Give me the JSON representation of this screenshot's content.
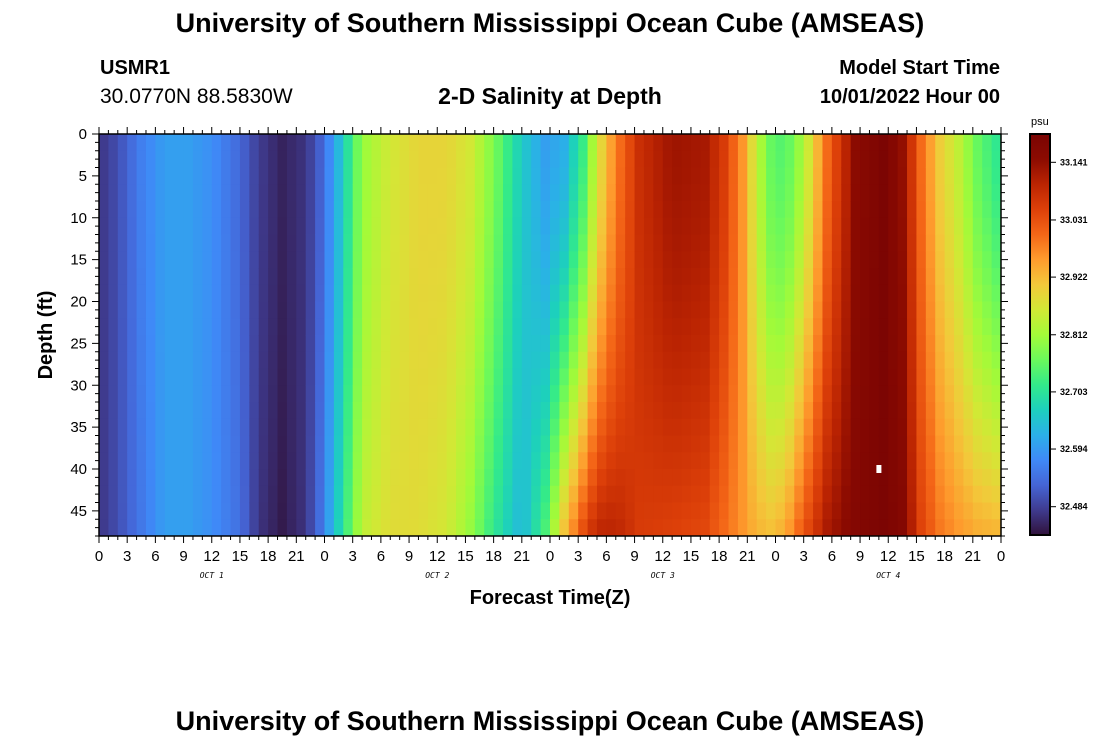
{
  "header": {
    "title": "University of Southern Mississippi Ocean Cube (AMSEAS)",
    "station_id": "USMR1",
    "station_coords": "30.0770N  88.5830W",
    "plot_title": "2-D Salinity at Depth",
    "model_start_label": "Model Start Time",
    "model_start_value": "10/01/2022 Hour 00"
  },
  "footer": {
    "title": "University of Southern Mississippi Ocean Cube (AMSEAS)"
  },
  "chart_data": {
    "type": "heatmap",
    "xlabel": "Forecast Time(Z)",
    "ylabel": "Depth (ft)",
    "x_tick_labels": [
      "0",
      "3",
      "6",
      "9",
      "12",
      "15",
      "18",
      "21",
      "0",
      "3",
      "6",
      "9",
      "12",
      "15",
      "18",
      "21",
      "0",
      "3",
      "6",
      "9",
      "12",
      "15",
      "18",
      "21",
      "0",
      "3",
      "6",
      "9",
      "12",
      "15",
      "18",
      "21",
      "0"
    ],
    "day_labels": [
      "OCT 1",
      "OCT 2",
      "OCT 3",
      "OCT 4"
    ],
    "xlim_hours": [
      0,
      96
    ],
    "y_ticks": [
      0,
      5,
      10,
      15,
      20,
      25,
      30,
      35,
      40,
      45
    ],
    "ylim": [
      0,
      48
    ],
    "y_inverted": true,
    "colorbar": {
      "unit": "psu",
      "labels": [
        "33.141",
        "33.031",
        "32.922",
        "32.812",
        "32.703",
        "32.594",
        "32.484"
      ],
      "vmin": 32.43,
      "vmax": 33.195,
      "colors": [
        "#30123b",
        "#3f3b8f",
        "#4565d6",
        "#3f89f7",
        "#2bb0e8",
        "#1dd0bd",
        "#33ea8a",
        "#6bf95b",
        "#a4fa38",
        "#d2e835",
        "#f3c83a",
        "#fe9b2d",
        "#f46617",
        "#dd4009",
        "#bb2402",
        "#8c0b01",
        "#7a0403"
      ]
    },
    "profile_anchors_hours": [
      0,
      2,
      4.5,
      7,
      9.5,
      12,
      15,
      17,
      19.5,
      22,
      23.5,
      25,
      26.5,
      28,
      31,
      34,
      37,
      39.5,
      42,
      45,
      47.5,
      49.5,
      51.5,
      53,
      55,
      57.5,
      61,
      64.5,
      66.5,
      68.5,
      70,
      71.5,
      73,
      75,
      77.5,
      80.5,
      83.5,
      85.5,
      87.5,
      89.5,
      91.5,
      93.5,
      96
    ],
    "surface_salinity": [
      32.47,
      32.5,
      32.56,
      32.6,
      32.6,
      32.58,
      32.53,
      32.48,
      32.45,
      32.47,
      32.52,
      32.6,
      32.7,
      32.8,
      32.86,
      32.89,
      32.89,
      32.86,
      32.78,
      32.66,
      32.6,
      32.62,
      32.72,
      32.86,
      32.98,
      33.08,
      33.13,
      33.12,
      33.06,
      32.96,
      32.84,
      32.76,
      32.74,
      32.82,
      33.0,
      33.15,
      33.19,
      33.14,
      33.0,
      32.9,
      32.84,
      32.76,
      32.7
    ],
    "bottom_salinity": [
      32.47,
      32.5,
      32.55,
      32.6,
      32.6,
      32.58,
      32.54,
      32.47,
      32.44,
      32.47,
      32.54,
      32.64,
      32.74,
      32.84,
      32.88,
      32.88,
      32.86,
      32.8,
      32.71,
      32.63,
      32.74,
      32.92,
      33.04,
      33.1,
      33.1,
      33.06,
      33.05,
      33.04,
      33.0,
      32.96,
      32.93,
      32.92,
      32.94,
      33.03,
      33.12,
      33.17,
      33.19,
      33.17,
      33.05,
      32.99,
      32.96,
      32.94,
      32.93
    ],
    "annotation": {
      "type": "white-marker",
      "hour": 83,
      "depth_ft": 40
    }
  }
}
